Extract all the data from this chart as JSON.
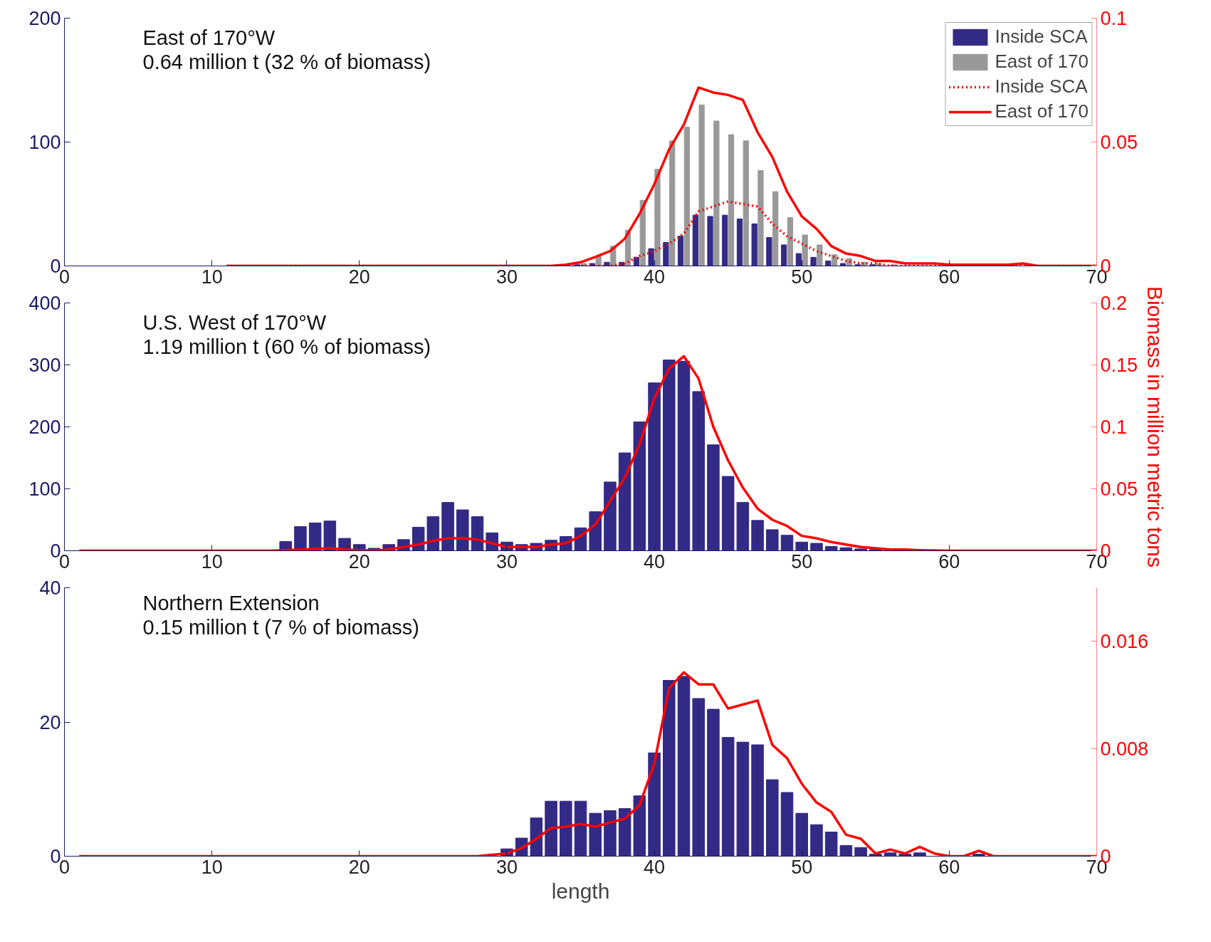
{
  "chart_data": [
    {
      "type": "bar",
      "xlim": [
        0,
        70
      ],
      "xticks": [
        0,
        10,
        20,
        30,
        40,
        50,
        60,
        70
      ],
      "ylim": [
        0,
        200
      ],
      "yticks": [
        0,
        100,
        200
      ],
      "y2lim": [
        0,
        0.1
      ],
      "y2ticks": [
        0,
        0.05,
        0.1
      ],
      "legend": "top right",
      "annotations": [
        "East of 170°W",
        "0.64 million t (32 % of biomass)"
      ],
      "series": [
        {
          "name": "Inside SCA",
          "color": "#332a85",
          "x": [
            34,
            35,
            36,
            37,
            38,
            39,
            40,
            41,
            42,
            43,
            44,
            45,
            46,
            47,
            48,
            49,
            50,
            51,
            52,
            53,
            54,
            55,
            56
          ],
          "values": [
            0,
            1,
            2,
            3,
            3,
            7,
            14,
            19,
            24,
            41,
            40,
            41,
            38,
            34,
            23,
            17,
            10,
            7,
            4,
            2,
            1,
            1,
            0
          ]
        },
        {
          "name": "East of 170",
          "color": "#999999",
          "x": [
            35,
            36,
            37,
            38,
            39,
            40,
            41,
            42,
            43,
            44,
            45,
            46,
            47,
            48,
            49,
            50,
            51,
            52,
            53,
            54,
            55,
            56
          ],
          "values": [
            2,
            8,
            16,
            29,
            53,
            78,
            101,
            112,
            130,
            117,
            106,
            101,
            77,
            60,
            39,
            25,
            17,
            9,
            6,
            3,
            2,
            1
          ]
        },
        {
          "name": "Inside SCA",
          "type": "line",
          "axis": "y2",
          "line_style": "dotted",
          "color": "#ff0000",
          "x": [
            11,
            37,
            38,
            39,
            40,
            41,
            42,
            43,
            44,
            45,
            46,
            47,
            48,
            49,
            50,
            51,
            52,
            53,
            54,
            55,
            56,
            70
          ],
          "values": [
            0,
            0,
            0.001,
            0.004,
            0.006,
            0.009,
            0.013,
            0.022,
            0.024,
            0.026,
            0.025,
            0.024,
            0.017,
            0.012,
            0.009,
            0.006,
            0.004,
            0.002,
            0.001,
            0.001,
            0,
            0
          ]
        },
        {
          "name": "East of 170",
          "type": "line",
          "axis": "y2",
          "line_style": "solid",
          "color": "#ff0000",
          "x": [
            11,
            33,
            34,
            35,
            36,
            37,
            38,
            39,
            40,
            41,
            42,
            43,
            44,
            45,
            46,
            47,
            48,
            49,
            50,
            51,
            52,
            53,
            54,
            55,
            56,
            57,
            58,
            59,
            60,
            64,
            65,
            66,
            70
          ],
          "values": [
            0,
            0,
            0.0005,
            0.0015,
            0.0036,
            0.006,
            0.011,
            0.021,
            0.033,
            0.047,
            0.057,
            0.072,
            0.07,
            0.069,
            0.067,
            0.054,
            0.044,
            0.03,
            0.02,
            0.015,
            0.008,
            0.005,
            0.004,
            0.002,
            0.002,
            0.001,
            0.001,
            0.001,
            0.0005,
            0.0005,
            0.001,
            0,
            0
          ]
        }
      ]
    },
    {
      "type": "bar",
      "xlim": [
        0,
        70
      ],
      "xticks": [
        0,
        10,
        20,
        30,
        40,
        50,
        60,
        70
      ],
      "ylim": [
        0,
        400
      ],
      "yticks": [
        0,
        100,
        200,
        300,
        400
      ],
      "y2lim": [
        0,
        0.2
      ],
      "y2ticks": [
        0,
        0.05,
        0.1,
        0.15,
        0.2
      ],
      "y2label": "Biomass in million metric tons",
      "annotations": [
        "U.S. West of 170°W",
        "1.19 million t (60 % of biomass)"
      ],
      "series": [
        {
          "color": "#332a85",
          "x": [
            15,
            16,
            17,
            18,
            19,
            20,
            21,
            22,
            23,
            24,
            25,
            26,
            27,
            28,
            29,
            30,
            31,
            32,
            33,
            34,
            35,
            36,
            37,
            38,
            39,
            40,
            41,
            42,
            43,
            44,
            45,
            46,
            47,
            48,
            49,
            50,
            51,
            52,
            53,
            54,
            55
          ],
          "values": [
            15,
            39,
            45,
            48,
            20,
            10,
            4,
            10,
            18,
            38,
            55,
            78,
            66,
            55,
            29,
            14,
            10,
            12,
            17,
            23,
            37,
            63,
            111,
            158,
            208,
            271,
            308,
            306,
            257,
            171,
            120,
            78,
            49,
            34,
            25,
            14,
            12,
            7,
            5,
            3,
            2
          ]
        },
        {
          "type": "line",
          "axis": "y2",
          "line_style": "solid",
          "color": "#ff0000",
          "x": [
            1,
            14,
            16,
            17,
            18,
            19,
            20,
            21,
            22,
            23,
            24,
            25,
            26,
            27,
            28,
            29,
            30,
            31,
            32,
            33,
            34,
            35,
            36,
            37,
            38,
            39,
            40,
            41,
            42,
            43,
            44,
            45,
            46,
            47,
            48,
            49,
            50,
            51,
            52,
            53,
            54,
            55,
            56,
            57,
            58,
            60,
            70
          ],
          "values": [
            0,
            0,
            0.001,
            0.0015,
            0.002,
            0.001,
            0.0005,
            0,
            0.001,
            0.003,
            0.005,
            0.008,
            0.01,
            0.01,
            0.009,
            0.006,
            0.003,
            0.003,
            0.003,
            0.005,
            0.006,
            0.012,
            0.021,
            0.04,
            0.059,
            0.086,
            0.123,
            0.147,
            0.157,
            0.139,
            0.1,
            0.073,
            0.051,
            0.034,
            0.025,
            0.02,
            0.012,
            0.01,
            0.007,
            0.005,
            0.003,
            0.002,
            0.001,
            0.001,
            0.0005,
            0,
            0
          ]
        }
      ]
    },
    {
      "type": "bar",
      "xlim": [
        0,
        70
      ],
      "xticks": [
        0,
        10,
        20,
        30,
        40,
        50,
        60,
        70
      ],
      "ylim": [
        0,
        40
      ],
      "yticks": [
        0,
        20,
        40
      ],
      "y2lim": [
        0,
        0.02
      ],
      "y2ticks": [
        0,
        0.008,
        0.016
      ],
      "xlabel": "length",
      "annotations": [
        "Northern Extension",
        "0.15 million t (7 % of biomass)"
      ],
      "series": [
        {
          "color": "#332a85",
          "x": [
            30,
            31,
            32,
            33,
            34,
            35,
            36,
            37,
            38,
            39,
            40,
            41,
            42,
            43,
            44,
            45,
            46,
            47,
            48,
            49,
            50,
            51,
            52,
            53,
            54,
            55,
            56,
            57,
            58,
            59,
            60,
            61,
            62
          ],
          "values": [
            1.1,
            2.7,
            5.7,
            8.2,
            8.2,
            8.2,
            6.4,
            6.8,
            7.1,
            9.0,
            15.4,
            26.2,
            26.8,
            23.5,
            21.9,
            17.7,
            17.0,
            16.6,
            11.4,
            9.5,
            6.4,
            4.7,
            3.6,
            1.6,
            1.3,
            0.3,
            0.5,
            0.3,
            0.5,
            0,
            0,
            0,
            0.3
          ]
        },
        {
          "type": "line",
          "axis": "y2",
          "line_style": "solid",
          "color": "#ff0000",
          "x": [
            1,
            25,
            28,
            29,
            30,
            31,
            32,
            33,
            34,
            35,
            36,
            37,
            38,
            39,
            40,
            41,
            42,
            43,
            44,
            45,
            46,
            47,
            48,
            49,
            50,
            51,
            52,
            53,
            54,
            55,
            56,
            57,
            58,
            59,
            60,
            61,
            62,
            63,
            70
          ],
          "values": [
            0,
            0,
            0,
            0.0001,
            0.0002,
            0.0006,
            0.0013,
            0.0021,
            0.0022,
            0.0024,
            0.0022,
            0.0025,
            0.0028,
            0.0038,
            0.0069,
            0.0125,
            0.0137,
            0.0128,
            0.0128,
            0.011,
            0.0113,
            0.0116,
            0.0083,
            0.0073,
            0.0054,
            0.004,
            0.0033,
            0.0016,
            0.0013,
            0.0002,
            0.0005,
            0.0002,
            0.0007,
            0.0002,
            0,
            0,
            0.0004,
            0,
            0
          ]
        }
      ]
    }
  ]
}
